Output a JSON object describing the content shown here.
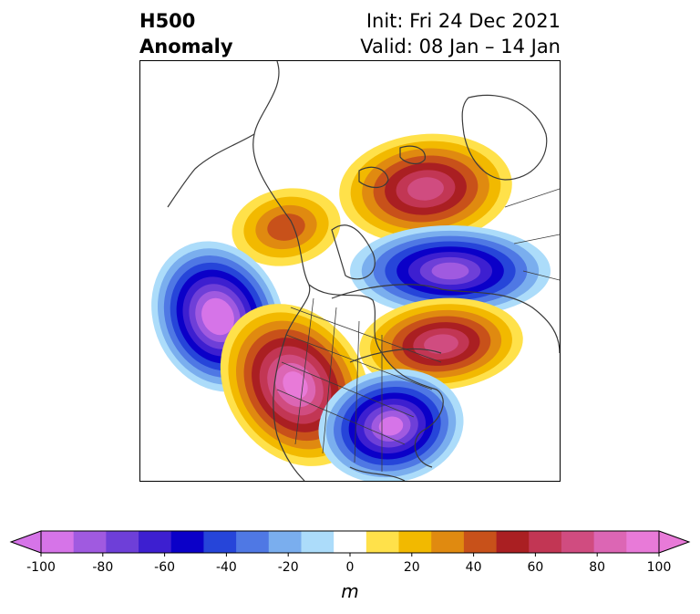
{
  "title": {
    "line1": "H500",
    "line2": "Anomaly",
    "init": "Init: Fri 24 Dec 2021",
    "valid": "Valid: 08 Jan – 14 Jan"
  },
  "colorbar": {
    "unit_label": "m",
    "ticks": [
      "-100",
      "-80",
      "-60",
      "-40",
      "-20",
      "0",
      "20",
      "40",
      "60",
      "80",
      "100"
    ],
    "levels": [
      -100,
      -90,
      -80,
      -70,
      -60,
      -50,
      -40,
      -30,
      -20,
      -10,
      10,
      20,
      30,
      40,
      50,
      60,
      70,
      80,
      90,
      100
    ],
    "colors": [
      "#d674e8",
      "#a05ae0",
      "#6e3fd8",
      "#3d1fd0",
      "#0b00c8",
      "#2645d9",
      "#4f78e4",
      "#7aaeee",
      "#acdcfa",
      "#ffffff",
      "#ffe14a",
      "#f2b900",
      "#e08a10",
      "#c8511a",
      "#aa1f22",
      "#c23654",
      "#d04c80",
      "#dc66b4",
      "#e87ad8"
    ]
  },
  "anomaly_centers": [
    {
      "id": "greenland-high",
      "sign": "positive",
      "peak_m": 70
    },
    {
      "id": "alaska-high",
      "sign": "positive",
      "peak_m": 40
    },
    {
      "id": "pacific-low",
      "sign": "negative",
      "peak_m": -100
    },
    {
      "id": "siberia-low",
      "sign": "negative",
      "peak_m": -80
    },
    {
      "id": "arctic-high",
      "sign": "positive",
      "peak_m": 70
    },
    {
      "id": "western-us-high",
      "sign": "positive",
      "peak_m": 90
    },
    {
      "id": "eastern-us-low",
      "sign": "negative",
      "peak_m": -90
    }
  ]
}
